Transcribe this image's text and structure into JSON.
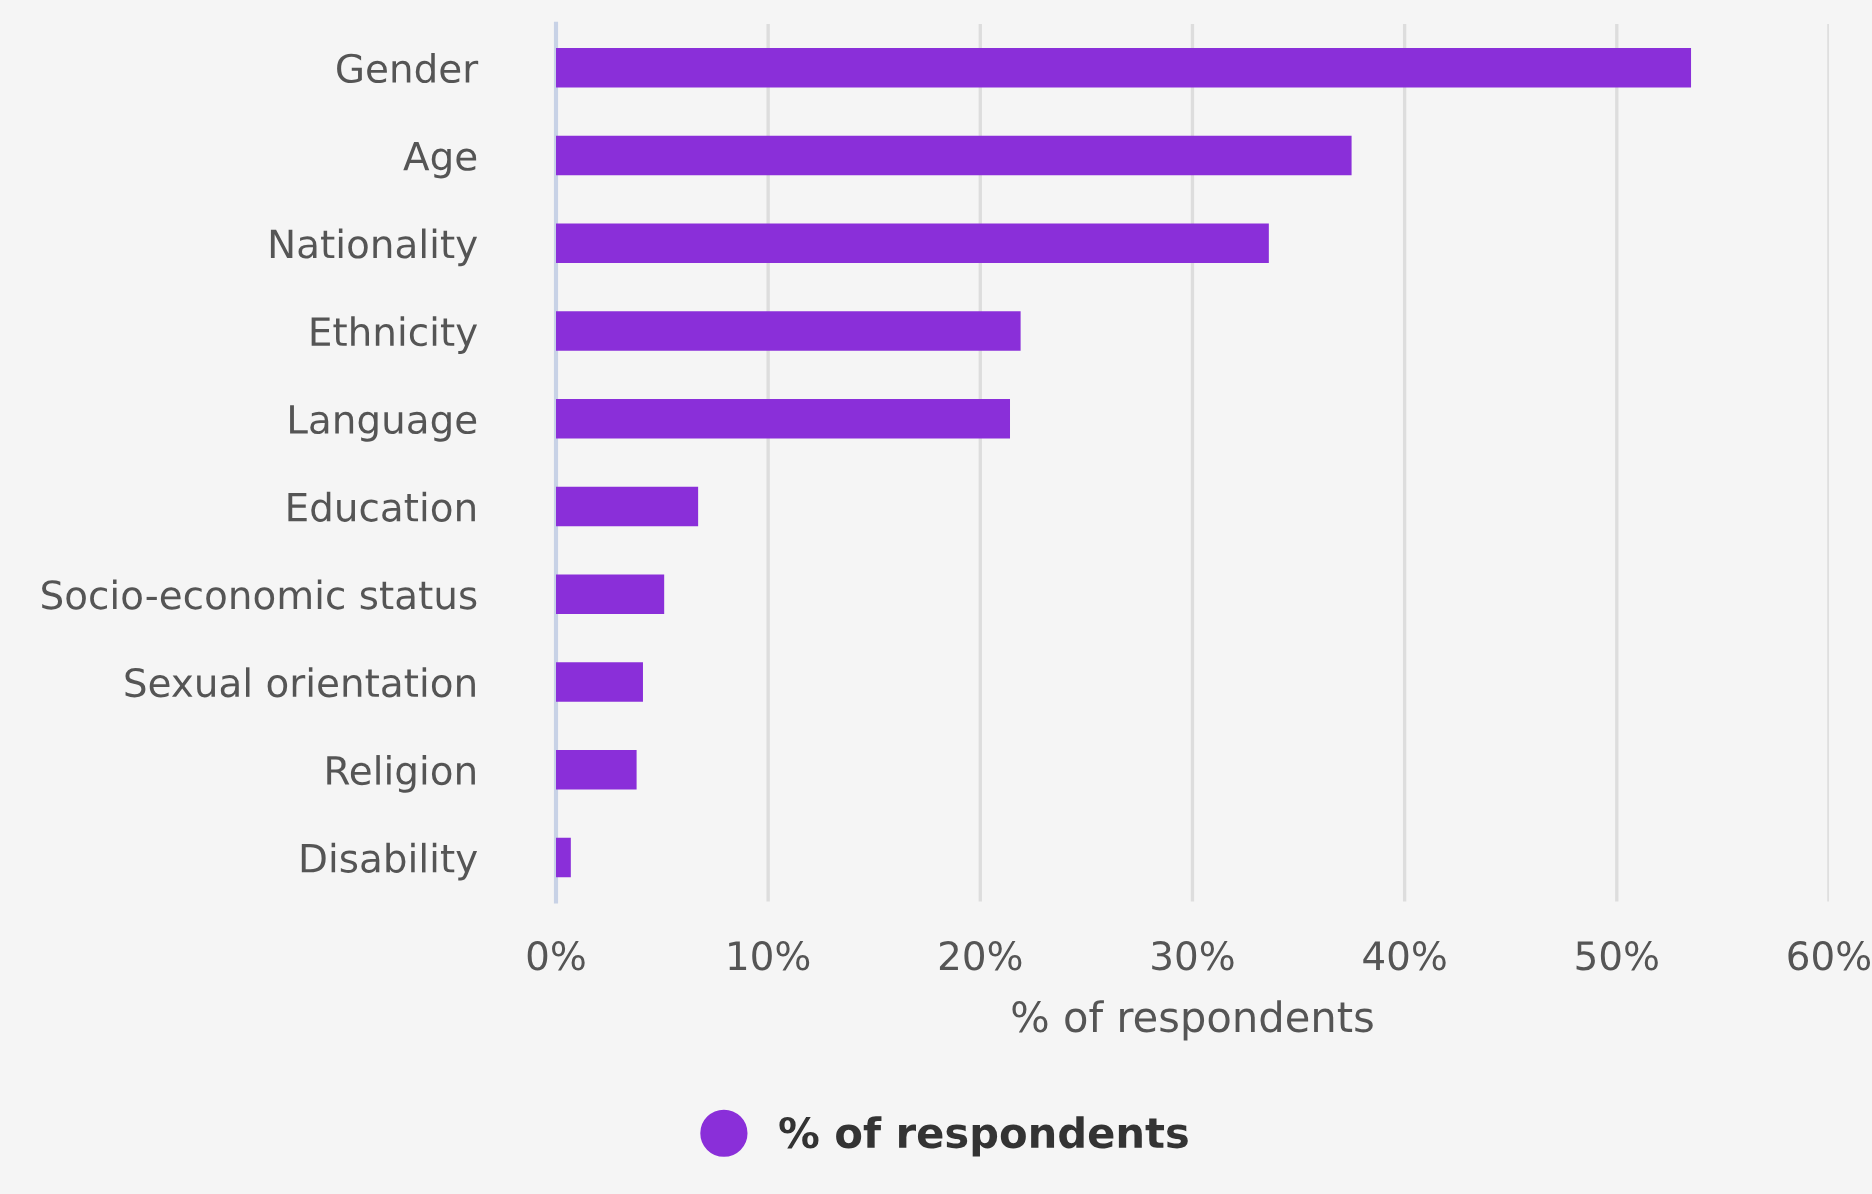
{
  "chart_data": {
    "type": "bar",
    "orientation": "horizontal",
    "xlabel": "% of respondents",
    "categories": [
      "Gender",
      "Age",
      "Nationality",
      "Ethnicity",
      "Language",
      "Education",
      "Socio-economic status",
      "Sexual orientation",
      "Religion",
      "Disability"
    ],
    "series": [
      {
        "name": "% of respondents",
        "color": "#8a2fd9",
        "values": [
          53.5,
          37.5,
          33.6,
          21.9,
          21.4,
          6.7,
          5.1,
          4.1,
          3.8,
          0.7
        ]
      }
    ],
    "xlim": [
      0,
      60
    ],
    "xticks": [
      {
        "value": 0,
        "label": "0%"
      },
      {
        "value": 10,
        "label": "10%"
      },
      {
        "value": 20,
        "label": "20%"
      },
      {
        "value": 30,
        "label": "30%"
      },
      {
        "value": 40,
        "label": "40%"
      },
      {
        "value": 50,
        "label": "50%"
      },
      {
        "value": 60,
        "label": "60%"
      }
    ],
    "grid": "x",
    "legend": "bottom"
  }
}
